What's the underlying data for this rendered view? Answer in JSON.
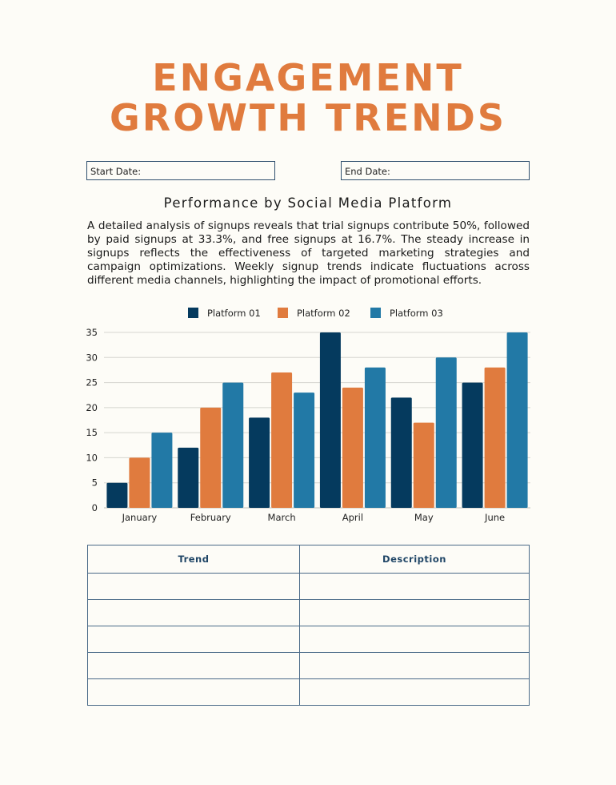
{
  "header": {
    "title_line1": "ENGAGEMENT",
    "title_line2": "GROWTH TRENDS"
  },
  "dates": {
    "start_label": "Start Date:",
    "start_value": "",
    "end_label": "End Date:",
    "end_value": ""
  },
  "section": {
    "subtitle": "Performance by Social Media Platform",
    "paragraph": "A detailed analysis of signups reveals that trial signups contribute 50%, followed by paid signups at 33.3%, and free signups at 16.7%. The steady increase in signups reflects the effectiveness of targeted marketing strategies and campaign optimizations. Weekly signup trends indicate fluctuations across different media channels, highlighting the impact of promotional efforts."
  },
  "colors": {
    "title": "#e07b3e",
    "platform1": "#053a5e",
    "platform2": "#e07b3e",
    "platform3": "#2279a6"
  },
  "chart_data": {
    "type": "bar",
    "title": "",
    "xlabel": "",
    "ylabel": "",
    "categories": [
      "January",
      "February",
      "March",
      "April",
      "May",
      "June"
    ],
    "series": [
      {
        "name": "Platform 01",
        "color": "#053a5e",
        "values": [
          5,
          12,
          18,
          35,
          22,
          25
        ]
      },
      {
        "name": "Platform 02",
        "color": "#e07b3e",
        "values": [
          10,
          20,
          27,
          24,
          17,
          28
        ]
      },
      {
        "name": "Platform 03",
        "color": "#2279a6",
        "values": [
          15,
          25,
          23,
          28,
          30,
          35
        ]
      }
    ],
    "ylim": [
      0,
      35
    ],
    "yticks": [
      0,
      5,
      10,
      15,
      20,
      25,
      30,
      35
    ],
    "grid": true,
    "legend": "top-center"
  },
  "table": {
    "headers": [
      "Trend",
      "Description"
    ],
    "rows": [
      [
        "",
        ""
      ],
      [
        "",
        ""
      ],
      [
        "",
        ""
      ],
      [
        "",
        ""
      ],
      [
        "",
        ""
      ]
    ]
  }
}
